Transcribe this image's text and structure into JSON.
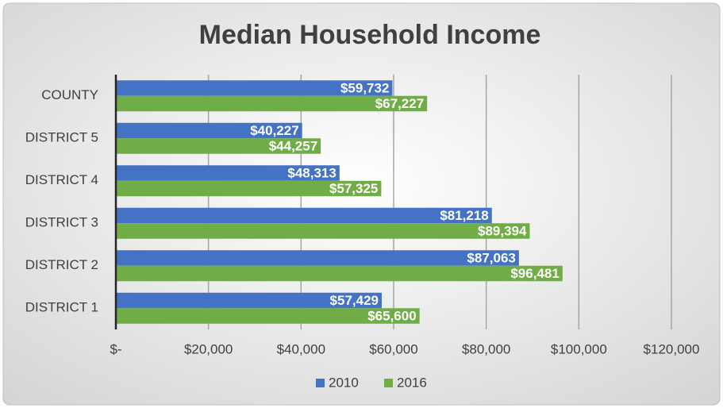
{
  "chart_data": {
    "type": "bar",
    "orientation": "horizontal",
    "title": "Median Household Income",
    "categories": [
      "COUNTY",
      "DISTRICT 5",
      "DISTRICT 4",
      "DISTRICT 3",
      "DISTRICT 2",
      "DISTRICT 1"
    ],
    "series": [
      {
        "name": "2010",
        "color": "#4472c4",
        "values": [
          59732,
          40227,
          48313,
          81218,
          87063,
          57429
        ],
        "value_labels": [
          "$59,732",
          "$40,227",
          "$48,313",
          "$81,218",
          "$87,063",
          "$57,429"
        ]
      },
      {
        "name": "2016",
        "color": "#70ad47",
        "values": [
          67227,
          44257,
          57325,
          89394,
          96481,
          65600
        ],
        "value_labels": [
          "$67,227",
          "$44,257",
          "$57,325",
          "$89,394",
          "$96,481",
          "$65,600"
        ]
      }
    ],
    "xlim": [
      0,
      120000
    ],
    "xticks": [
      {
        "value": 0,
        "label": "$-"
      },
      {
        "value": 20000,
        "label": "$20,000"
      },
      {
        "value": 40000,
        "label": "$40,000"
      },
      {
        "value": 60000,
        "label": "$60,000"
      },
      {
        "value": 80000,
        "label": "$80,000"
      },
      {
        "value": 100000,
        "label": "$100,000"
      },
      {
        "value": 120000,
        "label": "$120,000"
      }
    ],
    "grid": true,
    "legend": "bottom"
  }
}
